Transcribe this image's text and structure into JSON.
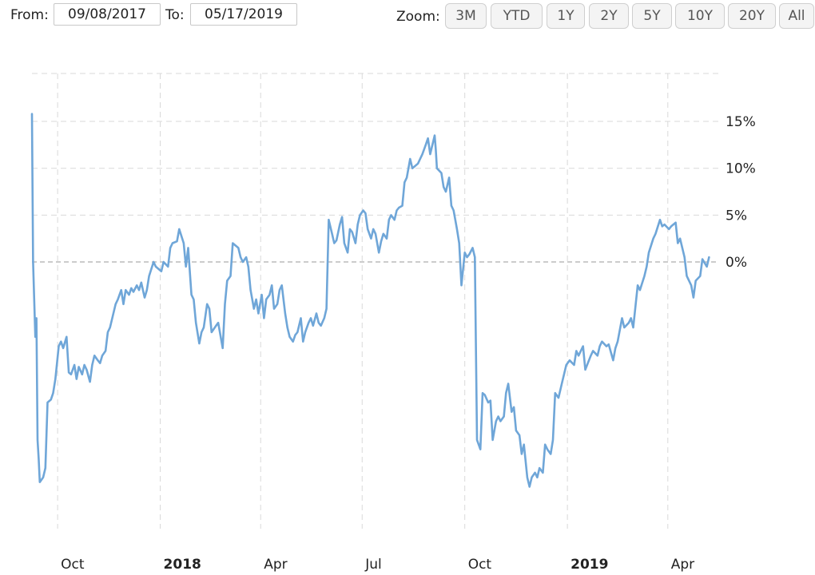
{
  "range": {
    "from_label": "From:",
    "from_value": "09/08/2017",
    "to_label": "To:",
    "to_value": "05/17/2019"
  },
  "zoom": {
    "label": "Zoom:",
    "buttons": [
      "3M",
      "YTD",
      "1Y",
      "2Y",
      "5Y",
      "10Y",
      "20Y",
      "All"
    ]
  },
  "colors": {
    "line": "#6fa6d8",
    "grid": "#d9d9d9",
    "zero_line": "#999999"
  },
  "chart_data": {
    "type": "line",
    "title": "",
    "xlabel": "",
    "ylabel": "",
    "y_unit": "%",
    "ylim": [
      -23,
      18
    ],
    "xlim": [
      "2017-09-08",
      "2019-05-17"
    ],
    "grid": true,
    "legend": "none",
    "yticks": [
      {
        "value": 15,
        "label": "15%"
      },
      {
        "value": 10,
        "label": "10%"
      },
      {
        "value": 5,
        "label": "5%"
      },
      {
        "value": 0,
        "label": "0%"
      }
    ],
    "xticks": [
      {
        "date": "2017-10-01",
        "label": "Oct",
        "bold": false
      },
      {
        "date": "2018-01-01",
        "label": "2018",
        "bold": true
      },
      {
        "date": "2018-04-01",
        "label": "Apr",
        "bold": false
      },
      {
        "date": "2018-07-01",
        "label": "Jul",
        "bold": false
      },
      {
        "date": "2018-10-01",
        "label": "Oct",
        "bold": false
      },
      {
        "date": "2019-01-01",
        "label": "2019",
        "bold": true
      },
      {
        "date": "2019-04-01",
        "label": "Apr",
        "bold": false
      }
    ],
    "series": [
      {
        "points": [
          [
            "2017-09-08",
            15.8
          ],
          [
            "2017-09-09",
            0
          ],
          [
            "2017-09-11",
            -8
          ],
          [
            "2017-09-12",
            -6
          ],
          [
            "2017-09-13",
            -19
          ],
          [
            "2017-09-14",
            -21
          ],
          [
            "2017-09-15",
            -23.5
          ],
          [
            "2017-09-18",
            -23
          ],
          [
            "2017-09-20",
            -22
          ],
          [
            "2017-09-22",
            -15
          ],
          [
            "2017-09-25",
            -14.7
          ],
          [
            "2017-09-27",
            -14
          ],
          [
            "2017-09-29",
            -12.5
          ],
          [
            "2017-10-02",
            -9
          ],
          [
            "2017-10-04",
            -8.5
          ],
          [
            "2017-10-06",
            -9.2
          ],
          [
            "2017-10-09",
            -8
          ],
          [
            "2017-10-11",
            -11.8
          ],
          [
            "2017-10-13",
            -12
          ],
          [
            "2017-10-16",
            -11
          ],
          [
            "2017-10-18",
            -12.5
          ],
          [
            "2017-10-20",
            -11.2
          ],
          [
            "2017-10-23",
            -12
          ],
          [
            "2017-10-25",
            -11
          ],
          [
            "2017-10-27",
            -11.5
          ],
          [
            "2017-10-30",
            -12.8
          ],
          [
            "2017-11-01",
            -11
          ],
          [
            "2017-11-03",
            -10
          ],
          [
            "2017-11-06",
            -10.5
          ],
          [
            "2017-11-08",
            -10.8
          ],
          [
            "2017-11-10",
            -10
          ],
          [
            "2017-11-13",
            -9.5
          ],
          [
            "2017-11-15",
            -7.5
          ],
          [
            "2017-11-17",
            -7
          ],
          [
            "2017-11-20",
            -5.5
          ],
          [
            "2017-11-22",
            -4.5
          ],
          [
            "2017-11-24",
            -4
          ],
          [
            "2017-11-27",
            -3
          ],
          [
            "2017-11-29",
            -4.5
          ],
          [
            "2017-12-01",
            -3
          ],
          [
            "2017-12-04",
            -3.5
          ],
          [
            "2017-12-06",
            -2.8
          ],
          [
            "2017-12-08",
            -3.2
          ],
          [
            "2017-12-11",
            -2.5
          ],
          [
            "2017-12-13",
            -3
          ],
          [
            "2017-12-15",
            -2.2
          ],
          [
            "2017-12-18",
            -3.8
          ],
          [
            "2017-12-20",
            -3
          ],
          [
            "2017-12-22",
            -1.5
          ],
          [
            "2017-12-26",
            0
          ],
          [
            "2017-12-28",
            -0.5
          ],
          [
            "2018-01-02",
            -1
          ],
          [
            "2018-01-04",
            0
          ],
          [
            "2018-01-08",
            -0.5
          ],
          [
            "2018-01-10",
            1.5
          ],
          [
            "2018-01-12",
            2
          ],
          [
            "2018-01-16",
            2.2
          ],
          [
            "2018-01-18",
            3.5
          ],
          [
            "2018-01-22",
            2
          ],
          [
            "2018-01-24",
            -0.5
          ],
          [
            "2018-01-26",
            1.5
          ],
          [
            "2018-01-29",
            -3.5
          ],
          [
            "2018-01-31",
            -4
          ],
          [
            "2018-02-02",
            -6.5
          ],
          [
            "2018-02-05",
            -8.7
          ],
          [
            "2018-02-07",
            -7.5
          ],
          [
            "2018-02-09",
            -7
          ],
          [
            "2018-02-12",
            -4.5
          ],
          [
            "2018-02-14",
            -5
          ],
          [
            "2018-02-16",
            -7.5
          ],
          [
            "2018-02-20",
            -6.8
          ],
          [
            "2018-02-22",
            -6.5
          ],
          [
            "2018-02-26",
            -9.2
          ],
          [
            "2018-02-28",
            -4.5
          ],
          [
            "2018-03-02",
            -2
          ],
          [
            "2018-03-05",
            -1.5
          ],
          [
            "2018-03-07",
            2
          ],
          [
            "2018-03-09",
            1.8
          ],
          [
            "2018-03-12",
            1.5
          ],
          [
            "2018-03-14",
            0.5
          ],
          [
            "2018-03-16",
            0
          ],
          [
            "2018-03-19",
            0.5
          ],
          [
            "2018-03-21",
            -0.5
          ],
          [
            "2018-03-23",
            -3
          ],
          [
            "2018-03-26",
            -5
          ],
          [
            "2018-03-28",
            -4
          ],
          [
            "2018-03-30",
            -5.5
          ],
          [
            "2018-04-02",
            -3.5
          ],
          [
            "2018-04-04",
            -6
          ],
          [
            "2018-04-06",
            -4
          ],
          [
            "2018-04-09",
            -3.5
          ],
          [
            "2018-04-11",
            -2.5
          ],
          [
            "2018-04-13",
            -5
          ],
          [
            "2018-04-16",
            -4.5
          ],
          [
            "2018-04-18",
            -3
          ],
          [
            "2018-04-20",
            -2.5
          ],
          [
            "2018-04-23",
            -5.5
          ],
          [
            "2018-04-25",
            -7
          ],
          [
            "2018-04-27",
            -8
          ],
          [
            "2018-04-30",
            -8.5
          ],
          [
            "2018-05-02",
            -7.8
          ],
          [
            "2018-05-04",
            -7.5
          ],
          [
            "2018-05-07",
            -6
          ],
          [
            "2018-05-09",
            -8.5
          ],
          [
            "2018-05-11",
            -7.5
          ],
          [
            "2018-05-14",
            -6.5
          ],
          [
            "2018-05-16",
            -6
          ],
          [
            "2018-05-18",
            -6.8
          ],
          [
            "2018-05-21",
            -5.5
          ],
          [
            "2018-05-23",
            -6.5
          ],
          [
            "2018-05-25",
            -6.8
          ],
          [
            "2018-05-28",
            -6
          ],
          [
            "2018-05-30",
            -5
          ],
          [
            "2018-06-01",
            4.5
          ],
          [
            "2018-06-04",
            3
          ],
          [
            "2018-06-06",
            2
          ],
          [
            "2018-06-08",
            2.3
          ],
          [
            "2018-06-11",
            4
          ],
          [
            "2018-06-13",
            4.8
          ],
          [
            "2018-06-15",
            2
          ],
          [
            "2018-06-18",
            1
          ],
          [
            "2018-06-20",
            3.5
          ],
          [
            "2018-06-22",
            3.2
          ],
          [
            "2018-06-25",
            2
          ],
          [
            "2018-06-27",
            4
          ],
          [
            "2018-06-29",
            5
          ],
          [
            "2018-07-02",
            5.5
          ],
          [
            "2018-07-04",
            5.2
          ],
          [
            "2018-07-06",
            3.5
          ],
          [
            "2018-07-09",
            2.5
          ],
          [
            "2018-07-11",
            3.5
          ],
          [
            "2018-07-13",
            3
          ],
          [
            "2018-07-16",
            1
          ],
          [
            "2018-07-18",
            2.2
          ],
          [
            "2018-07-20",
            3
          ],
          [
            "2018-07-23",
            2.5
          ],
          [
            "2018-07-25",
            4.5
          ],
          [
            "2018-07-27",
            5
          ],
          [
            "2018-07-30",
            4.5
          ],
          [
            "2018-08-01",
            5.5
          ],
          [
            "2018-08-03",
            5.8
          ],
          [
            "2018-08-06",
            6
          ],
          [
            "2018-08-08",
            8.5
          ],
          [
            "2018-08-10",
            9
          ],
          [
            "2018-08-13",
            11
          ],
          [
            "2018-08-15",
            10
          ],
          [
            "2018-08-17",
            10.2
          ],
          [
            "2018-08-20",
            10.5
          ],
          [
            "2018-08-22",
            11
          ],
          [
            "2018-08-24",
            11.5
          ],
          [
            "2018-08-27",
            12.5
          ],
          [
            "2018-08-29",
            13.2
          ],
          [
            "2018-08-31",
            11.5
          ],
          [
            "2018-09-04",
            13.5
          ],
          [
            "2018-09-05",
            12
          ],
          [
            "2018-09-06",
            10
          ],
          [
            "2018-09-10",
            9.5
          ],
          [
            "2018-09-12",
            8
          ],
          [
            "2018-09-14",
            7.5
          ],
          [
            "2018-09-17",
            9
          ],
          [
            "2018-09-19",
            6
          ],
          [
            "2018-09-21",
            5.5
          ],
          [
            "2018-09-24",
            3.5
          ],
          [
            "2018-09-26",
            2
          ],
          [
            "2018-09-28",
            -2.5
          ],
          [
            "2018-10-01",
            1
          ],
          [
            "2018-10-03",
            0.5
          ],
          [
            "2018-10-05",
            0.8
          ],
          [
            "2018-10-08",
            1.5
          ],
          [
            "2018-10-10",
            0.5
          ],
          [
            "2018-10-12",
            -19
          ],
          [
            "2018-10-15",
            -20
          ],
          [
            "2018-10-17",
            -14
          ],
          [
            "2018-10-19",
            -14.2
          ],
          [
            "2018-10-22",
            -15
          ],
          [
            "2018-10-24",
            -14.8
          ],
          [
            "2018-10-26",
            -19
          ],
          [
            "2018-10-29",
            -17
          ],
          [
            "2018-10-31",
            -16.5
          ],
          [
            "2018-11-02",
            -17
          ],
          [
            "2018-11-05",
            -16.5
          ],
          [
            "2018-11-07",
            -14
          ],
          [
            "2018-11-09",
            -13
          ],
          [
            "2018-11-12",
            -16
          ],
          [
            "2018-11-14",
            -15.5
          ],
          [
            "2018-11-16",
            -18
          ],
          [
            "2018-11-19",
            -18.5
          ],
          [
            "2018-11-21",
            -20.5
          ],
          [
            "2018-11-23",
            -19.5
          ],
          [
            "2018-11-26",
            -23
          ],
          [
            "2018-11-28",
            -24
          ],
          [
            "2018-11-30",
            -23
          ],
          [
            "2018-12-03",
            -22.5
          ],
          [
            "2018-12-05",
            -23
          ],
          [
            "2018-12-07",
            -22
          ],
          [
            "2018-12-10",
            -22.5
          ],
          [
            "2018-12-12",
            -19.5
          ],
          [
            "2018-12-14",
            -20
          ],
          [
            "2018-12-17",
            -20.5
          ],
          [
            "2018-12-19",
            -19
          ],
          [
            "2018-12-21",
            -14
          ],
          [
            "2018-12-24",
            -14.5
          ],
          [
            "2018-12-27",
            -13
          ],
          [
            "2018-12-31",
            -11
          ],
          [
            "2019-01-03",
            -10.5
          ],
          [
            "2019-01-07",
            -11
          ],
          [
            "2019-01-09",
            -9.5
          ],
          [
            "2019-01-11",
            -10
          ],
          [
            "2019-01-15",
            -9
          ],
          [
            "2019-01-17",
            -11.5
          ],
          [
            "2019-01-22",
            -10
          ],
          [
            "2019-01-24",
            -9.5
          ],
          [
            "2019-01-28",
            -10
          ],
          [
            "2019-01-30",
            -9
          ],
          [
            "2019-02-01",
            -8.5
          ],
          [
            "2019-02-05",
            -9
          ],
          [
            "2019-02-07",
            -8.8
          ],
          [
            "2019-02-11",
            -10.5
          ],
          [
            "2019-02-13",
            -9.2
          ],
          [
            "2019-02-15",
            -8.5
          ],
          [
            "2019-02-19",
            -6
          ],
          [
            "2019-02-21",
            -7
          ],
          [
            "2019-02-25",
            -6.5
          ],
          [
            "2019-02-27",
            -6
          ],
          [
            "2019-03-01",
            -7
          ],
          [
            "2019-03-05",
            -2.5
          ],
          [
            "2019-03-07",
            -3
          ],
          [
            "2019-03-11",
            -1.5
          ],
          [
            "2019-03-13",
            -0.5
          ],
          [
            "2019-03-15",
            1
          ],
          [
            "2019-03-19",
            2.5
          ],
          [
            "2019-03-21",
            3
          ],
          [
            "2019-03-25",
            4.5
          ],
          [
            "2019-03-27",
            3.8
          ],
          [
            "2019-03-29",
            4
          ],
          [
            "2019-04-02",
            3.5
          ],
          [
            "2019-04-04",
            3.8
          ],
          [
            "2019-04-08",
            4.2
          ],
          [
            "2019-04-10",
            2
          ],
          [
            "2019-04-12",
            2.5
          ],
          [
            "2019-04-16",
            0.5
          ],
          [
            "2019-04-18",
            -1.5
          ],
          [
            "2019-04-22",
            -2.5
          ],
          [
            "2019-04-24",
            -3.8
          ],
          [
            "2019-04-26",
            -2
          ],
          [
            "2019-04-30",
            -1.5
          ],
          [
            "2019-05-02",
            0.3
          ],
          [
            "2019-05-06",
            -0.5
          ],
          [
            "2019-05-08",
            0.5
          ]
        ]
      }
    ]
  }
}
